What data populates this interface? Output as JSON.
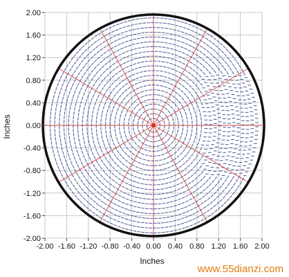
{
  "chart_data": {
    "type": "scatter",
    "xlabel": "Inches",
    "ylabel": "Inches",
    "xlim": [
      -2.0,
      2.0
    ],
    "ylim": [
      -2.0,
      2.0
    ],
    "x_ticks": [
      "-2.00",
      "-1.60",
      "-1.20",
      "-0.80",
      "-0.40",
      "0.00",
      "0.40",
      "0.80",
      "1.20",
      "1.60",
      "2.00"
    ],
    "y_ticks": [
      "2.00",
      "1.60",
      "1.20",
      "0.80",
      "0.40",
      "0.00",
      "-0.40",
      "-0.80",
      "-1.20",
      "-1.60",
      "-2.00"
    ],
    "grid": true,
    "circle_radius": 2.0,
    "center": [
      0,
      0
    ],
    "field_color": "#3a4a8a",
    "radial_line_color": "#d03030",
    "radial_line_angles_deg": [
      0,
      30,
      60,
      90,
      120,
      150,
      180,
      210,
      240,
      270,
      300,
      330
    ]
  },
  "watermark": "www.55dianzi.com",
  "colors": {
    "background": "#ffffff",
    "grid": "#c8c8c8",
    "boundary": "#111111",
    "field": "#3a4a8a",
    "radial": "#d03030",
    "watermark": "#e07a10"
  }
}
